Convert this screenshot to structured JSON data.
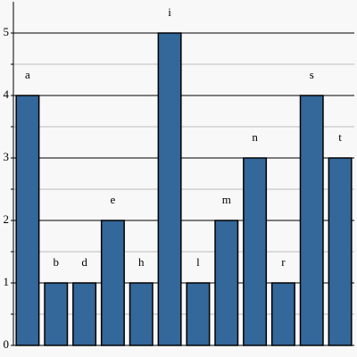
{
  "chart_data": {
    "type": "bar",
    "categories": [
      "a",
      "b",
      "d",
      "e",
      "h",
      "i",
      "l",
      "m",
      "n",
      "r",
      "s",
      "t"
    ],
    "values": [
      4,
      1,
      1,
      2,
      1,
      5,
      1,
      2,
      3,
      1,
      4,
      3
    ],
    "color": "#34679a",
    "ylim": [
      0,
      5.5
    ],
    "yticks": [
      0,
      1,
      2,
      3,
      4,
      5
    ],
    "minor_yticks": [
      0.5,
      1.5,
      2.5,
      3.5,
      4.5
    ],
    "grid": true
  }
}
